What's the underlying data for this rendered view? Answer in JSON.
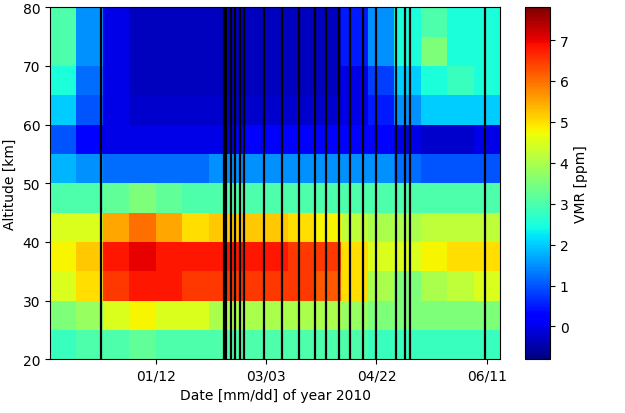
{
  "chart_data": {
    "type": "heatmap",
    "x_label": "Date [mm/dd] of year 2010",
    "y_label": "Altitude [km]",
    "colorbar_label": "VMR [ppm]",
    "xlim": [
      -36,
      168
    ],
    "xticks": [
      {
        "value": 12,
        "label": "01/12"
      },
      {
        "value": 62,
        "label": "03/03"
      },
      {
        "value": 112,
        "label": "04/22"
      },
      {
        "value": 162,
        "label": "06/11"
      }
    ],
    "ylim": [
      20,
      80
    ],
    "yticks": [
      20,
      30,
      40,
      50,
      60,
      70,
      80
    ],
    "x_edges": [
      -36,
      -24,
      -12,
      0,
      12,
      24,
      36,
      48,
      60,
      72,
      84,
      96,
      108,
      120,
      132,
      144,
      156,
      168
    ],
    "y_edges": [
      20,
      25,
      30,
      35,
      40,
      45,
      50,
      55,
      60,
      65,
      70,
      75,
      80
    ],
    "cells": [
      [
        2.8,
        3,
        3,
        3.2,
        3,
        3,
        3,
        3,
        3,
        3,
        3,
        3,
        2.8,
        2.8,
        2.8,
        2.8,
        2.8
      ],
      [
        3.5,
        3.8,
        4.5,
        4.8,
        4.5,
        4.5,
        4,
        4,
        4,
        4,
        4,
        3.8,
        3.5,
        3.5,
        3.5,
        3.5,
        3.5
      ],
      [
        4.5,
        5,
        6.5,
        6.8,
        6.8,
        6.5,
        6.5,
        6.5,
        6.5,
        6.5,
        6.2,
        5,
        4,
        3.5,
        4,
        4.2,
        4.5
      ],
      [
        4.8,
        5.2,
        6.8,
        7,
        6.8,
        6.8,
        6.8,
        6.8,
        6.8,
        6.5,
        6.5,
        5,
        4.5,
        4.5,
        4.8,
        5,
        5
      ],
      [
        4.5,
        4.5,
        5.5,
        6,
        5.5,
        5,
        5.2,
        5.2,
        5.2,
        5,
        4.8,
        4.2,
        4,
        4,
        4.2,
        4.2,
        4.2
      ],
      [
        3,
        3,
        3.2,
        3.5,
        3.2,
        3,
        3,
        3,
        3,
        3,
        3,
        3,
        3,
        3,
        3,
        3,
        3
      ],
      [
        1.8,
        1.5,
        1.2,
        1.2,
        1.2,
        1.2,
        1.5,
        1.5,
        1.5,
        1.5,
        1.5,
        1.5,
        1.5,
        1.2,
        1,
        1,
        1
      ],
      [
        1,
        0.3,
        0,
        0,
        0,
        0,
        0,
        0.2,
        0.2,
        0.2,
        0.2,
        0.3,
        0.3,
        0,
        -0.2,
        -0.2,
        0
      ],
      [
        2,
        1,
        0,
        -0.2,
        -0.2,
        -0.2,
        -0.2,
        -0.2,
        -0.2,
        -0.2,
        -0.2,
        0,
        0.5,
        1.5,
        2,
        2,
        2
      ],
      [
        2.5,
        1.2,
        0,
        -0.3,
        -0.3,
        -0.3,
        -0.3,
        -0.3,
        -0.3,
        -0.3,
        -0.3,
        0,
        0.8,
        2,
        2.5,
        2.8,
        2.5
      ],
      [
        3,
        1.5,
        0,
        -0.3,
        -0.3,
        -0.3,
        -0.3,
        -0.3,
        -0.3,
        -0.3,
        -0.3,
        0.5,
        1.5,
        2.5,
        3.5,
        2.5,
        2.5
      ],
      [
        3,
        1.5,
        0,
        -0.3,
        -0.3,
        -0.3,
        -0.3,
        -0.3,
        -0.3,
        -0.3,
        -0.3,
        0.5,
        1.5,
        2.5,
        3,
        2.5,
        2.5
      ]
    ],
    "colorbar_range": [
      -0.8,
      7.8
    ],
    "colorbar_ticks": [
      0,
      1,
      2,
      3,
      4,
      5,
      6,
      7
    ],
    "gaps": {
      "color": "#000000",
      "x": [
        -13,
        43,
        44,
        46,
        48,
        50,
        52,
        61,
        69,
        77,
        84,
        89,
        95,
        100,
        106,
        112,
        121,
        125,
        127,
        161
      ]
    }
  }
}
